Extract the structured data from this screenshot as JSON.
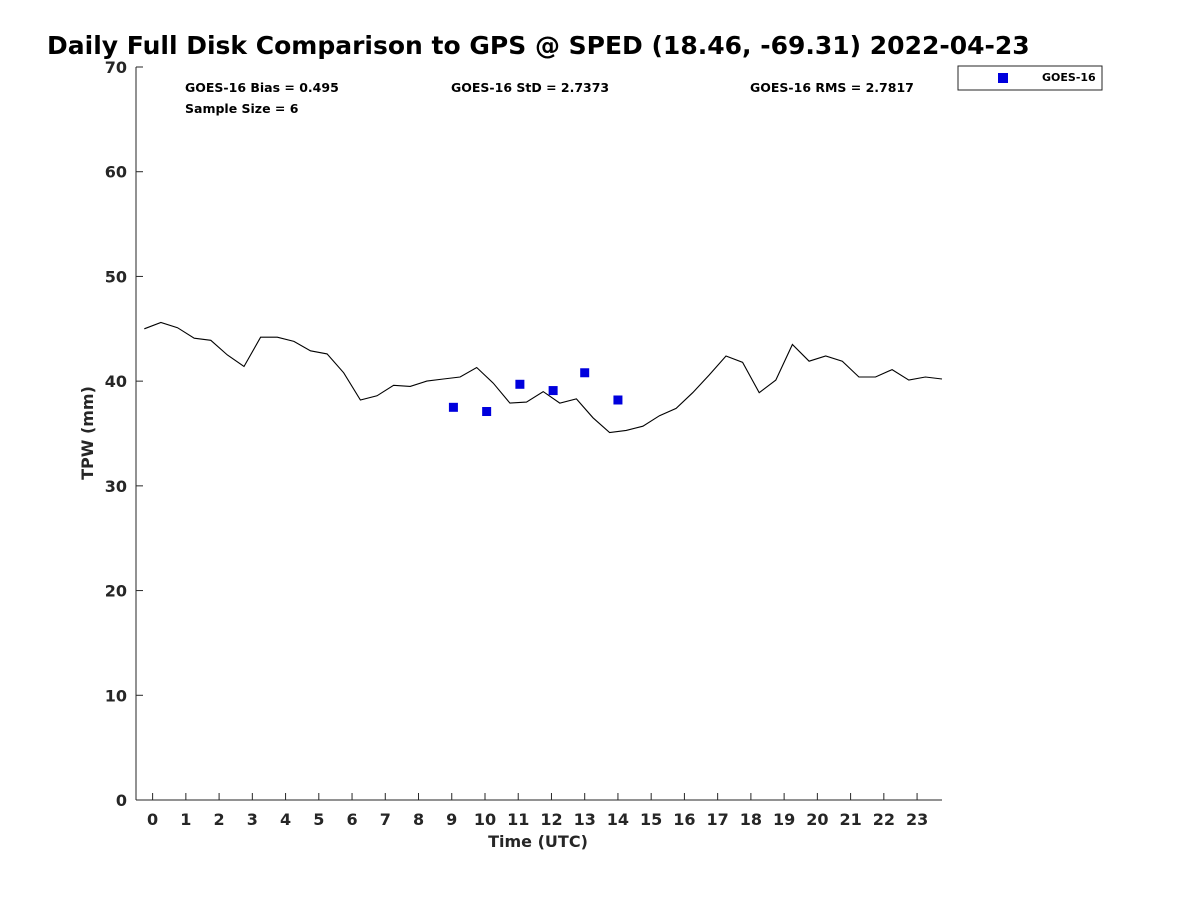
{
  "chart_data": {
    "type": "scatter",
    "title": "Daily Full Disk Comparison to GPS @ SPED (18.46, -69.31) 2022-04-23",
    "xlabel": "Time (UTC)",
    "ylabel": "TPW (mm)",
    "xlim": [
      -0.5,
      23.75
    ],
    "ylim": [
      0,
      70
    ],
    "x_ticks": [
      0,
      1,
      2,
      3,
      4,
      5,
      6,
      7,
      8,
      9,
      10,
      11,
      12,
      13,
      14,
      15,
      16,
      17,
      18,
      19,
      20,
      21,
      22,
      23
    ],
    "y_ticks": [
      0,
      10,
      20,
      30,
      40,
      50,
      60,
      70
    ],
    "stats": {
      "bias": "GOES-16 Bias = 0.495",
      "std": "GOES-16 StD = 2.7373",
      "rms": "GOES-16 RMS = 2.7817",
      "sample": "Sample Size = 6"
    },
    "legend": {
      "position": "top-right",
      "label": "GOES-16",
      "color": "#0000dd"
    },
    "series": [
      {
        "name": "GPS",
        "style": "line",
        "color": "#000000",
        "x": [
          -0.25,
          0.25,
          0.75,
          1.25,
          1.75,
          2.25,
          2.75,
          3.25,
          3.75,
          4.25,
          4.75,
          5.25,
          5.75,
          6.25,
          6.75,
          7.25,
          7.75,
          8.25,
          8.75,
          9.25,
          9.75,
          10.25,
          10.75,
          11.25,
          11.75,
          12.25,
          12.75,
          13.25,
          13.75,
          14.25,
          14.75,
          15.25,
          15.75,
          16.25,
          16.75,
          17.25,
          17.75,
          18.25,
          18.75,
          19.25,
          19.75,
          20.25,
          20.75,
          21.25,
          21.75,
          22.25,
          22.75,
          23.25,
          23.75
        ],
        "values": [
          45.0,
          45.6,
          45.1,
          44.1,
          43.9,
          42.5,
          41.4,
          44.2,
          44.2,
          43.8,
          42.9,
          42.6,
          40.8,
          38.2,
          38.6,
          39.6,
          39.5,
          40.0,
          40.2,
          40.4,
          41.3,
          39.8,
          37.9,
          38.0,
          39.0,
          37.9,
          38.3,
          36.5,
          35.1,
          35.3,
          35.7,
          36.7,
          37.4,
          38.9,
          40.6,
          42.4,
          41.8,
          38.9,
          40.1,
          43.5,
          41.9,
          42.4,
          41.9,
          40.4,
          40.4,
          41.1,
          40.1,
          40.4,
          40.2
        ]
      },
      {
        "name": "GOES-16",
        "style": "markers",
        "color": "#0000dd",
        "x": [
          9.05,
          10.05,
          11.05,
          12.05,
          13.0,
          14.0
        ],
        "values": [
          37.5,
          37.1,
          39.7,
          39.1,
          40.8,
          38.2
        ]
      }
    ]
  }
}
